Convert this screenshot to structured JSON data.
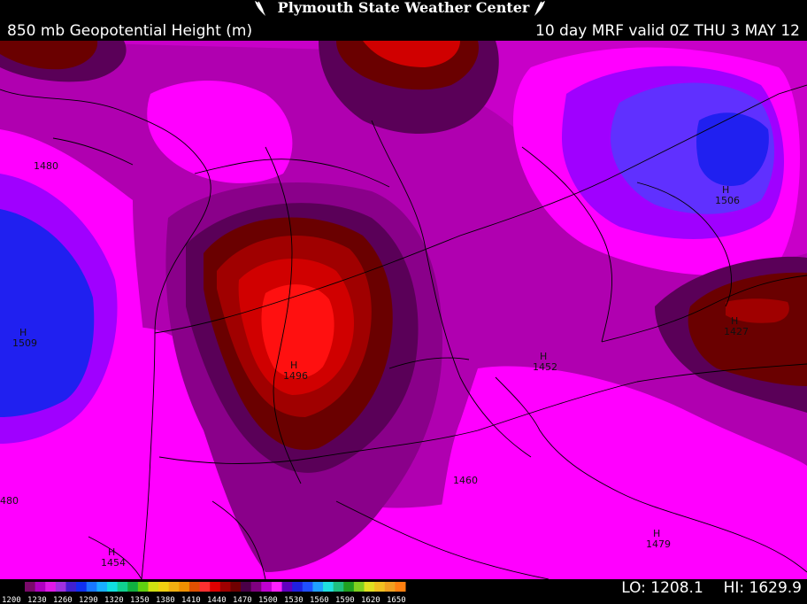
{
  "header": {
    "brand": "Plymouth State Weather Center",
    "field": "850 mb Geopotential Height (m)",
    "run": "10 day MRF valid 0Z THU 3 MAY 12"
  },
  "stats": {
    "lo": "LO: 1208.1",
    "hi": "HI: 1629.9"
  },
  "legend": {
    "labels": [
      "1200",
      "1230",
      "1260",
      "1290",
      "1320",
      "1350",
      "1380",
      "1410",
      "1440",
      "1470",
      "1500",
      "1530",
      "1560",
      "1590",
      "1620",
      "1650"
    ],
    "colors": [
      "#7a0a6a",
      "#b000c0",
      "#e018e8",
      "#a030e0",
      "#4020d0",
      "#1030f0",
      "#1878ff",
      "#18b0ff",
      "#10e0e0",
      "#10d090",
      "#10b040",
      "#60d010",
      "#d0e010",
      "#f0d010",
      "#f0b010",
      "#f09000",
      "#e05000",
      "#ff3030",
      "#e00000",
      "#a00000",
      "#700000",
      "#4a0048",
      "#800080",
      "#c000d0",
      "#ff20ff",
      "#6000c0",
      "#2020e0",
      "#2050ff",
      "#20a0ff",
      "#20e0e0",
      "#20c080",
      "#20a020",
      "#80d020",
      "#e0e020",
      "#f0c020",
      "#f0a020",
      "#ff8010"
    ]
  },
  "map": {
    "colors": {
      "bg": "#b000b0",
      "light": "#ff00ff",
      "mid": "#c800c8",
      "dark": "#8a008a",
      "darker": "#5a0058",
      "maroon": "#6a0000",
      "red1": "#a00000",
      "red2": "#d00000",
      "red3": "#ff1010",
      "violet": "#a000ff",
      "blue1": "#6030ff",
      "blue2": "#2020f0"
    },
    "labels": [
      {
        "text": "1480",
        "kind": "contour"
      },
      {
        "text": "1509",
        "kind": "high"
      },
      {
        "text": "1496",
        "kind": "high"
      },
      {
        "text": "1452",
        "kind": "high"
      },
      {
        "text": "1506",
        "kind": "high"
      },
      {
        "text": "1427",
        "kind": "high"
      },
      {
        "text": "1460",
        "kind": "contour"
      },
      {
        "text": "480",
        "kind": "contour"
      },
      {
        "text": "1454",
        "kind": "high"
      },
      {
        "text": "1479",
        "kind": "high"
      }
    ],
    "marker_symbol": "H"
  }
}
